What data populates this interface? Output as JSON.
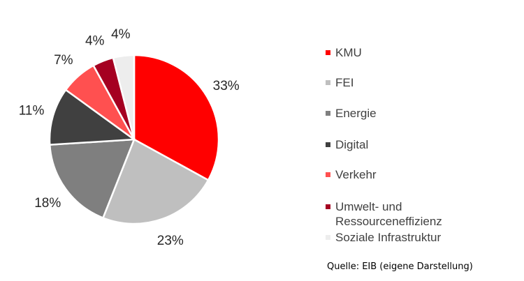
{
  "chart_data": {
    "type": "pie",
    "title": "",
    "slices": [
      {
        "label": "KMU",
        "value": 33,
        "display": "33%",
        "color": "#ff0000"
      },
      {
        "label": "FEI",
        "value": 23,
        "display": "23%",
        "color": "#bfbfbf"
      },
      {
        "label": "Energie",
        "value": 18,
        "display": "18%",
        "color": "#7f7f7f"
      },
      {
        "label": "Digital",
        "value": 11,
        "display": "11%",
        "color": "#404040"
      },
      {
        "label": "Verkehr",
        "value": 7,
        "display": "7%",
        "color": "#ff5050"
      },
      {
        "label": "Umwelt- und Ressourceneffizienz",
        "value": 4,
        "display": "4%",
        "color": "#a50021"
      },
      {
        "label": "Soziale Infrastruktur",
        "value": 4,
        "display": "4%",
        "color": "#ededed"
      }
    ],
    "legend_position": "right"
  },
  "legend": [
    {
      "label": "KMU",
      "color": "#ff0000"
    },
    {
      "label": "FEI",
      "color": "#bfbfbf"
    },
    {
      "label": "Energie",
      "color": "#7f7f7f"
    },
    {
      "label": "Digital",
      "color": "#404040"
    },
    {
      "label": "Verkehr",
      "color": "#ff5050"
    },
    {
      "label": "Umwelt- und\nRessourceneffizienz",
      "color": "#a50021"
    },
    {
      "label": "Soziale Infrastruktur",
      "color": "#ededed"
    }
  ],
  "source": "Quelle: EIB (eigene Darstellung)"
}
